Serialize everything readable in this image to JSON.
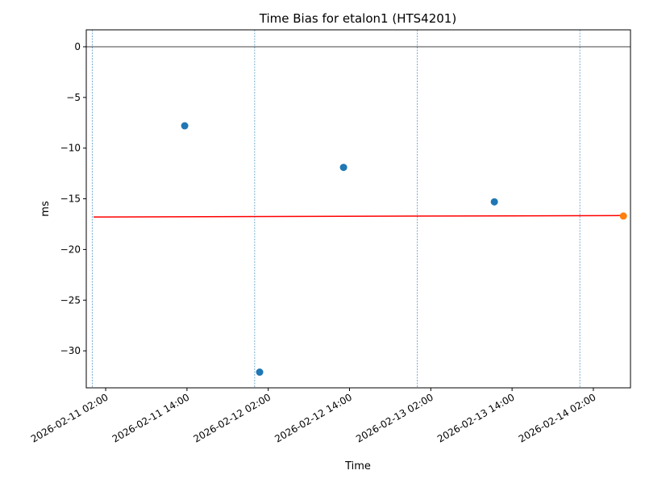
{
  "chart_data": {
    "type": "scatter",
    "title": "Time Bias for etalon1 (HTS4201)",
    "x_label": "Time",
    "y_label": "ms",
    "xlim": [
      "2026-02-10 23:08",
      "2026-02-14 07:29"
    ],
    "xticks": [
      "2026-02-11 02:00",
      "2026-02-11 14:00",
      "2026-02-12 02:00",
      "2026-02-12 14:00",
      "2026-02-13 02:00",
      "2026-02-13 14:00",
      "2026-02-14 02:00"
    ],
    "ylim": [
      -33.65,
      1.67
    ],
    "yticks": [
      {
        "value": 0,
        "label": "0"
      },
      {
        "value": -5,
        "label": "−5"
      },
      {
        "value": -10,
        "label": "−10"
      },
      {
        "value": -15,
        "label": "−15"
      },
      {
        "value": -20,
        "label": "−20"
      },
      {
        "value": -25,
        "label": "−25"
      },
      {
        "value": -30,
        "label": "−30"
      }
    ],
    "hline": 0,
    "vlines": [
      "2026-02-11 00:00",
      "2026-02-12 00:00",
      "2026-02-13 00:00",
      "2026-02-14 00:00"
    ],
    "series": [
      {
        "kind": "line",
        "color": "#ff0000",
        "x": [
          "2026-02-11 00:13",
          "2026-02-14 06:26"
        ],
        "values": [
          -16.8,
          -16.65
        ]
      },
      {
        "kind": "marker",
        "color": "#1f77b4",
        "x": [
          "2026-02-11 13:40",
          "2026-02-12 00:44",
          "2026-02-12 13:07",
          "2026-02-13 11:23"
        ],
        "values": [
          -7.8,
          -32.1,
          -11.9,
          -15.3
        ]
      },
      {
        "kind": "marker",
        "color": "#ff7f0e",
        "x": [
          "2026-02-14 06:26"
        ],
        "values": [
          -16.7
        ]
      }
    ]
  }
}
